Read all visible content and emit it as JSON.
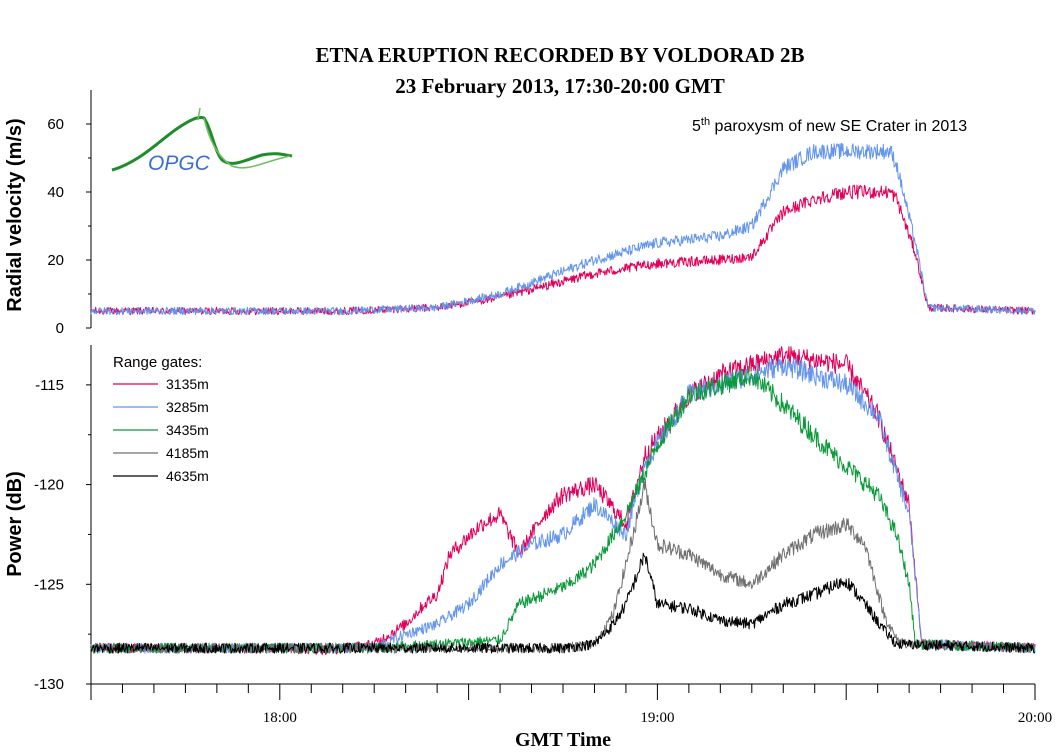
{
  "chart_data": [
    {
      "type": "line",
      "panel": "top",
      "title": "ETNA ERUPTION RECORDED BY VOLDORAD 2B",
      "subtitle": "23 February 2013, 17:30-20:00 GMT",
      "ylabel": "Radial velocity (m/s)",
      "xlabel": "GMT Time",
      "ylim": [
        0,
        70
      ],
      "yticks": [
        0,
        20,
        40,
        60
      ],
      "ytick_labels": [
        "0",
        "20",
        "40",
        "60"
      ],
      "annotation": {
        "prefix": "5",
        "sup": "th",
        "text": " paroxysm of new SE Crater in 2013"
      },
      "logo_text": "OPGC",
      "x_unit": "minutes after 17:30 GMT",
      "series": [
        {
          "color": "#e0005a",
          "x": [
            0,
            20,
            40,
            55,
            65,
            80,
            90,
            100,
            105,
            110,
            115,
            120,
            127,
            128,
            131,
            133,
            150
          ],
          "values": [
            5,
            5,
            5,
            6,
            9,
            16,
            19,
            20,
            21,
            34,
            38,
            40,
            40,
            38,
            22,
            6,
            5
          ]
        },
        {
          "color": "#6495ed",
          "x": [
            0,
            20,
            40,
            55,
            65,
            80,
            90,
            100,
            105,
            110,
            115,
            120,
            127,
            128,
            131,
            133,
            150
          ],
          "values": [
            5,
            5,
            5,
            6,
            10,
            20,
            25,
            27,
            30,
            47,
            52,
            52,
            52,
            48,
            25,
            6,
            5
          ]
        }
      ]
    },
    {
      "type": "line",
      "panel": "bottom",
      "ylabel": "Power (dB)",
      "xlabel": "GMT Time",
      "ylim": [
        -130,
        -113
      ],
      "yticks": [
        -130,
        -125,
        -120,
        -115
      ],
      "ytick_labels": [
        "-130",
        "-125",
        "-120",
        "-115"
      ],
      "xlim": [
        "17:30",
        "20:00"
      ],
      "xticks": [
        "18:00",
        "19:00",
        "20:00"
      ],
      "legend_title": "Range gates:",
      "legend_position": "top-left",
      "x_unit": "minutes after 17:30 GMT",
      "series": [
        {
          "name": "3135m",
          "color": "#e0005a",
          "x": [
            0,
            30,
            38,
            45,
            50,
            53,
            55,
            57,
            62,
            65,
            68,
            72,
            75,
            80,
            85,
            88,
            95,
            100,
            105,
            110,
            120,
            125,
            130,
            132,
            150
          ],
          "values": [
            -128.2,
            -128.2,
            -128.3,
            -128.0,
            -127.0,
            -126.0,
            -125.5,
            -123.5,
            -122.0,
            -121.5,
            -123.5,
            -121.5,
            -120.5,
            -120.0,
            -122.0,
            -118.5,
            -115.5,
            -114.5,
            -114.0,
            -113.5,
            -114.0,
            -116.5,
            -121.0,
            -128.0,
            -128.2
          ]
        },
        {
          "name": "3285m",
          "color": "#6495ed",
          "x": [
            0,
            30,
            45,
            50,
            55,
            60,
            65,
            70,
            75,
            80,
            85,
            88,
            95,
            100,
            105,
            110,
            120,
            125,
            130,
            132,
            150
          ],
          "values": [
            -128.2,
            -128.2,
            -128.2,
            -127.5,
            -127.0,
            -126.0,
            -124.0,
            -123.0,
            -122.5,
            -121.0,
            -122.5,
            -119.0,
            -115.5,
            -115.0,
            -114.5,
            -114.0,
            -115.0,
            -116.5,
            -121.5,
            -128.0,
            -128.2
          ]
        },
        {
          "name": "3435m",
          "color": "#0a9a3a",
          "x": [
            0,
            45,
            55,
            65,
            68,
            72,
            76,
            80,
            85,
            90,
            95,
            100,
            105,
            110,
            118,
            125,
            128,
            130,
            131,
            150
          ],
          "values": [
            -128.2,
            -128.2,
            -128.0,
            -127.8,
            -126.0,
            -125.5,
            -125.0,
            -124.0,
            -121.5,
            -118.0,
            -115.5,
            -115.0,
            -114.5,
            -116.0,
            -118.5,
            -120.5,
            -122.5,
            -125.0,
            -128.0,
            -128.2
          ]
        },
        {
          "name": "4185m",
          "color": "#707070",
          "x": [
            0,
            60,
            70,
            75,
            80,
            83,
            85,
            88,
            90,
            95,
            100,
            105,
            110,
            115,
            120,
            123,
            126,
            128,
            130,
            150
          ],
          "values": [
            -128.2,
            -128.2,
            -128.2,
            -128.2,
            -128.0,
            -126.5,
            -124.0,
            -120.0,
            -123.0,
            -123.5,
            -124.5,
            -125.0,
            -123.5,
            -122.5,
            -122.0,
            -123.0,
            -126.5,
            -127.8,
            -128.0,
            -128.2
          ]
        },
        {
          "name": "4635m",
          "color": "#000000",
          "x": [
            0,
            60,
            75,
            80,
            83,
            85,
            88,
            90,
            95,
            100,
            105,
            110,
            115,
            120,
            123,
            126,
            128,
            150
          ],
          "values": [
            -128.2,
            -128.2,
            -128.2,
            -128.0,
            -127.0,
            -126.0,
            -123.5,
            -126.0,
            -126.2,
            -126.8,
            -127.0,
            -126.0,
            -125.5,
            -124.8,
            -126.0,
            -127.3,
            -128.0,
            -128.2
          ]
        }
      ]
    }
  ]
}
